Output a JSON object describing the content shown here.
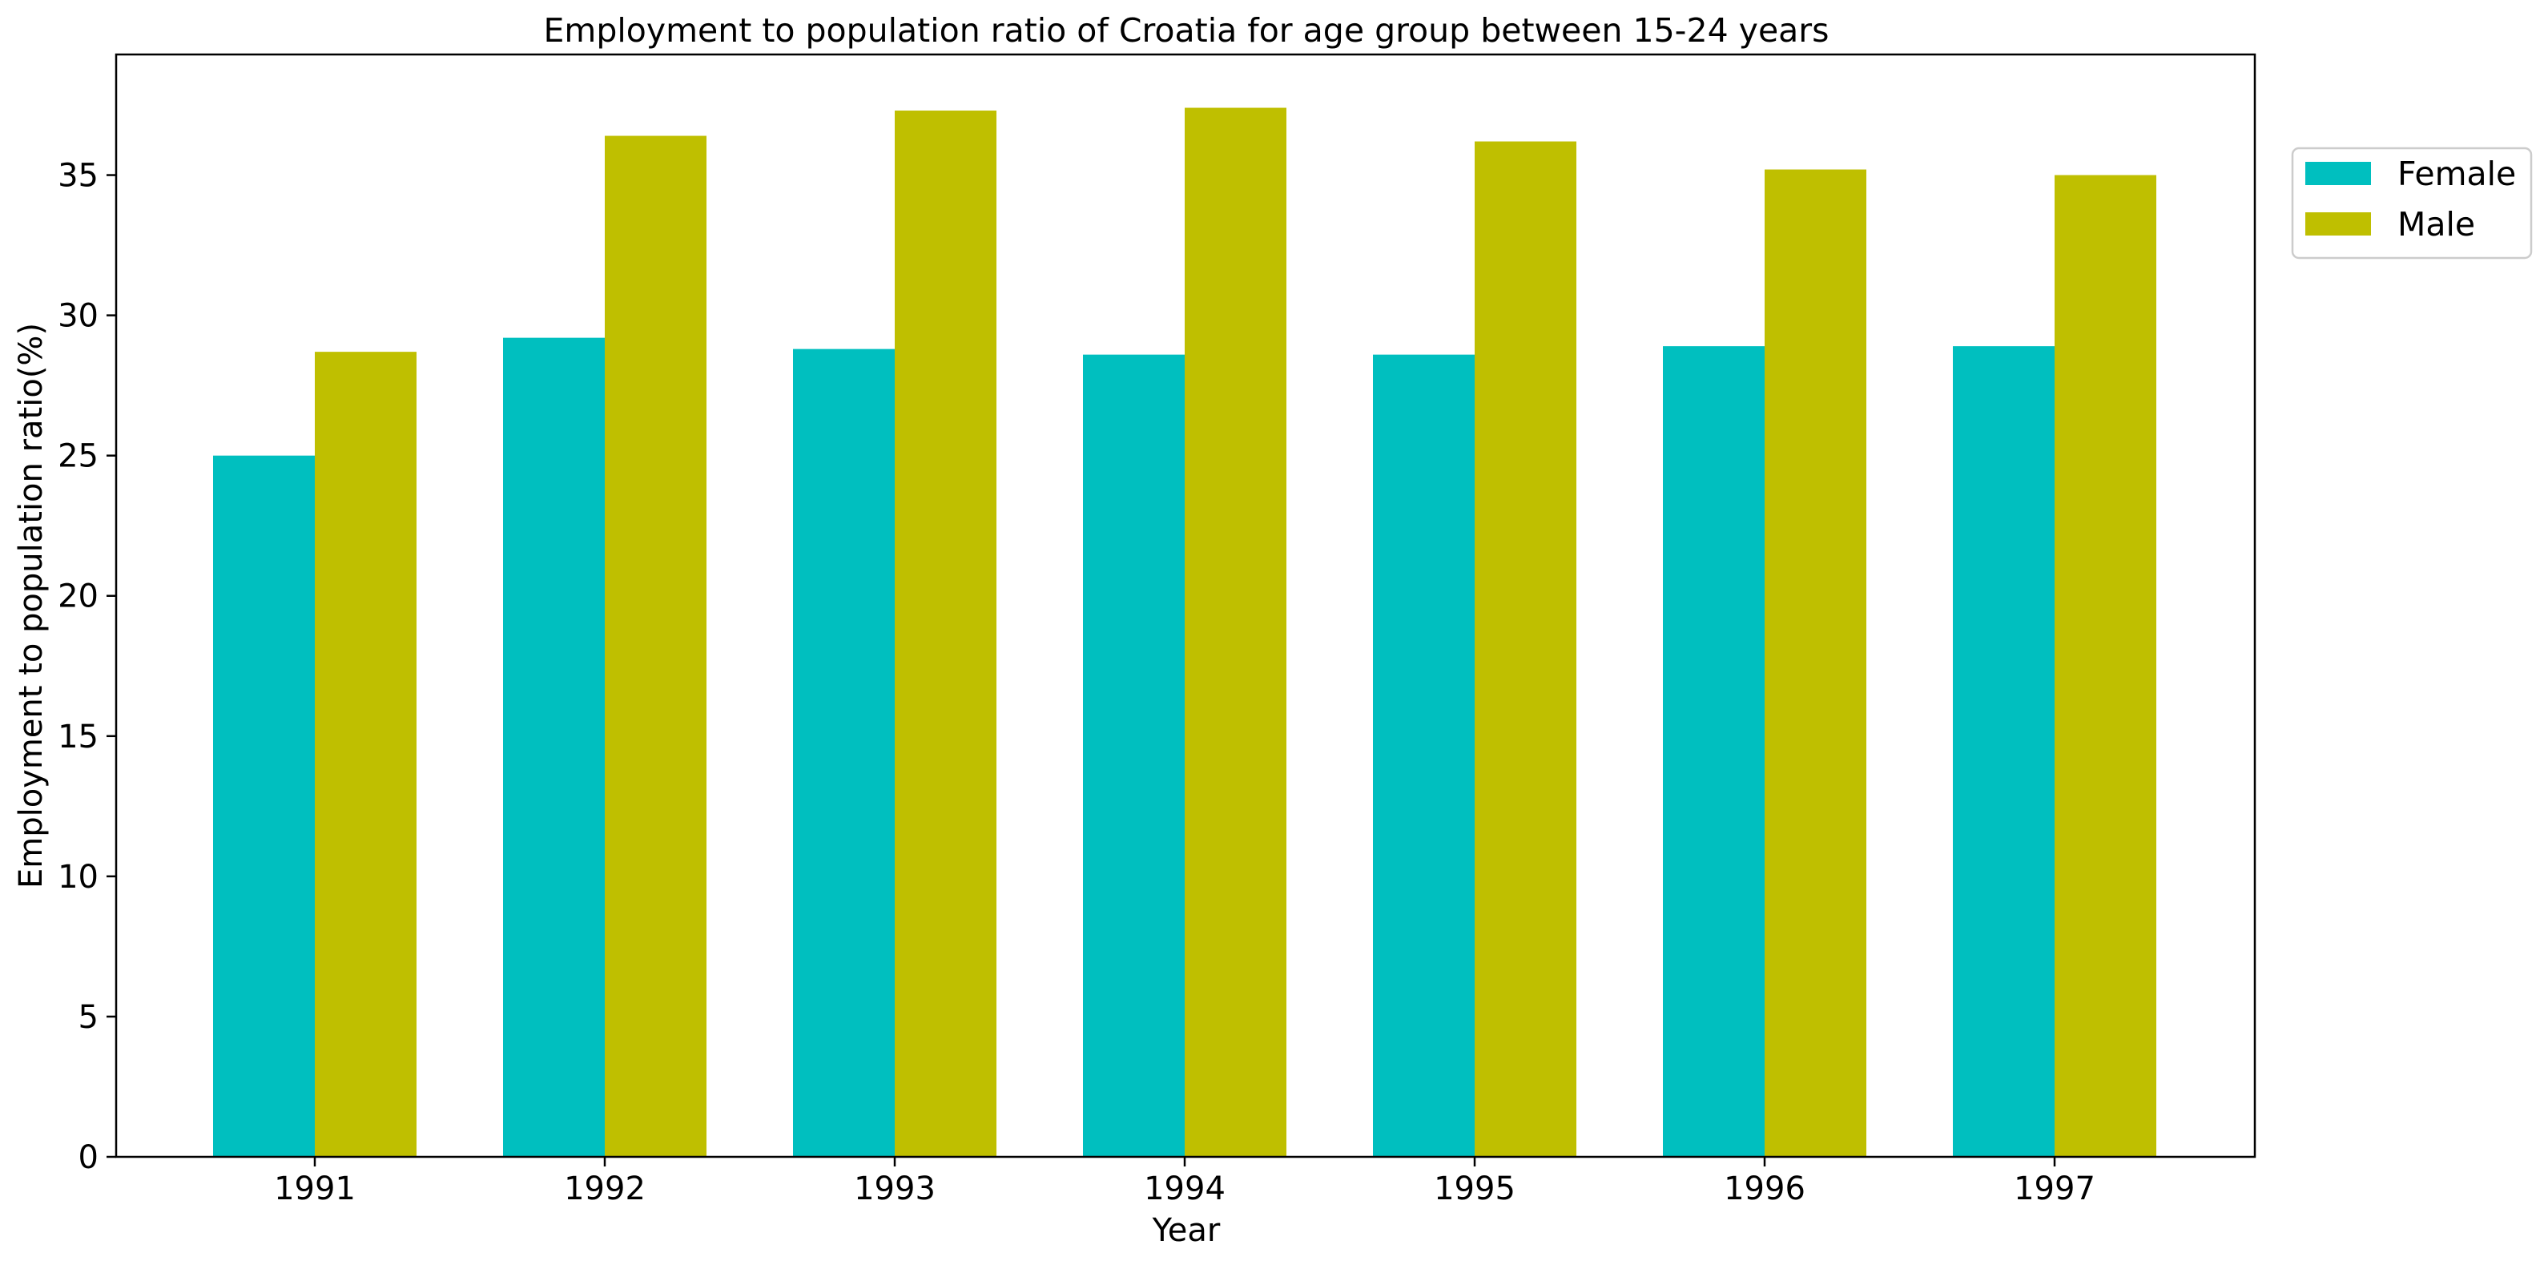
{
  "chart_data": {
    "type": "bar",
    "title": "Employment to population ratio of Croatia for age group between 15-24 years",
    "xlabel": "Year",
    "ylabel": "Employment to population ratio(%)",
    "categories": [
      "1991",
      "1992",
      "1993",
      "1994",
      "1995",
      "1996",
      "1997"
    ],
    "series": [
      {
        "name": "Female",
        "color": "#00bfbf",
        "values": [
          25.0,
          29.2,
          28.8,
          28.6,
          28.6,
          28.9,
          28.9
        ]
      },
      {
        "name": "Male",
        "color": "#bfbf00",
        "values": [
          28.7,
          36.4,
          37.3,
          37.4,
          36.2,
          35.2,
          35.0
        ]
      }
    ],
    "ylim": [
      0,
      39.3
    ],
    "yticks": [
      0,
      5,
      10,
      15,
      20,
      25,
      30,
      35
    ],
    "grid": false,
    "legend_position": "upper-right-outside"
  }
}
